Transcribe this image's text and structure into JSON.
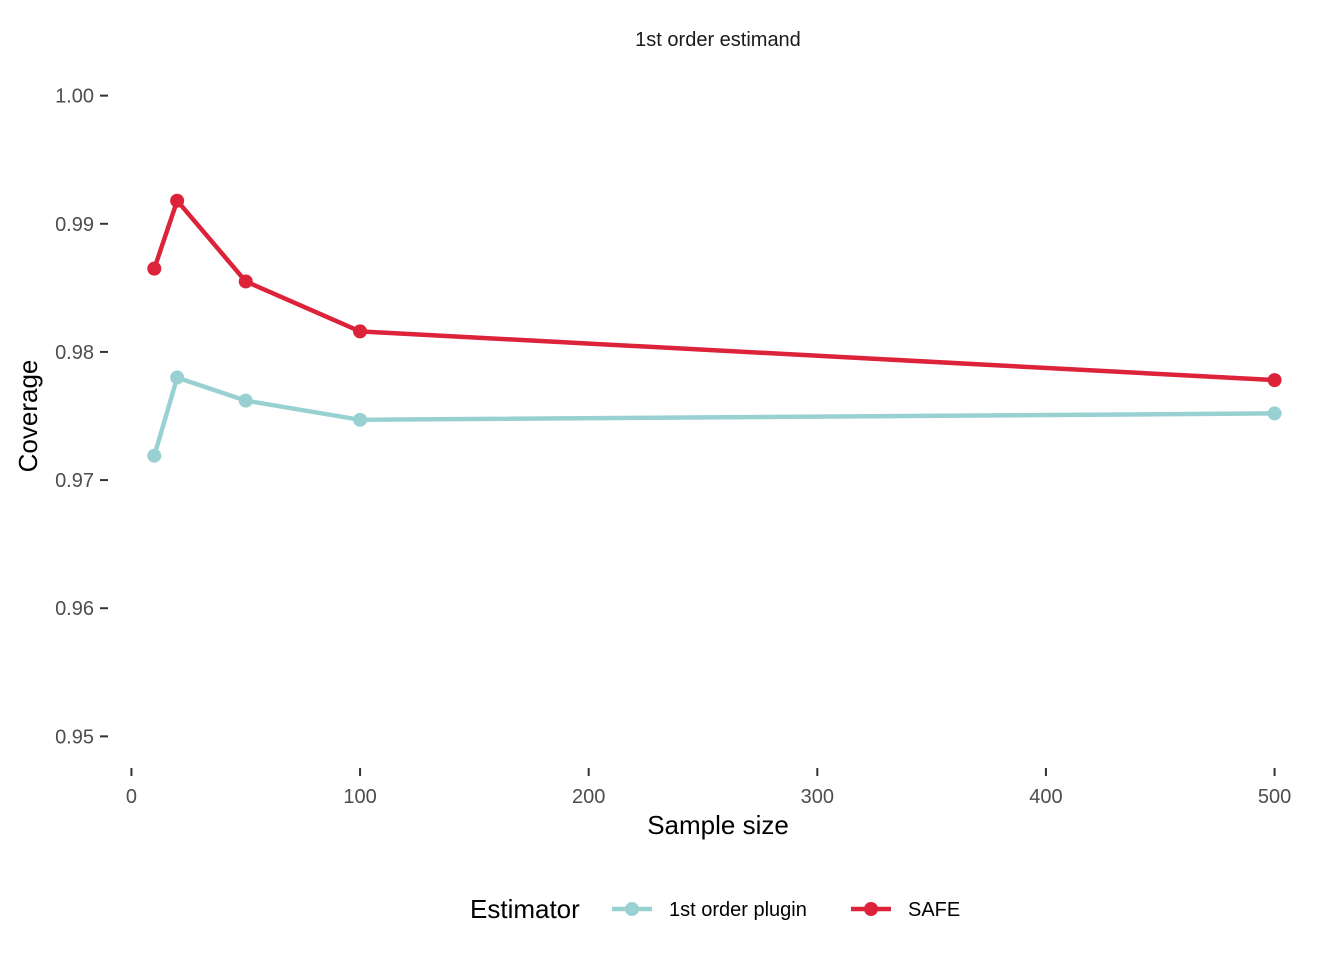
{
  "chart_data": {
    "type": "line",
    "title": "1st order estimand",
    "xlabel": "Sample size",
    "ylabel": "Coverage",
    "xlim": [
      -5,
      505
    ],
    "ylim": [
      0.948,
      1.002
    ],
    "x_ticks": [
      0,
      100,
      200,
      300,
      400,
      500
    ],
    "x_tick_labels": [
      "0",
      "100",
      "200",
      "300",
      "400",
      "500"
    ],
    "y_ticks": [
      0.95,
      0.96,
      0.97,
      0.98,
      0.99,
      1.0
    ],
    "y_tick_labels": [
      "0.95",
      "0.96",
      "0.97",
      "0.98",
      "0.99",
      "1.00"
    ],
    "grid": false,
    "legend": {
      "title": "Estimator",
      "position": "bottom"
    },
    "x": [
      10,
      20,
      50,
      100,
      500
    ],
    "series": [
      {
        "name": "1st order plugin",
        "color": "#99D1D3",
        "values": [
          0.9719,
          0.978,
          0.9762,
          0.9747,
          0.9752
        ]
      },
      {
        "name": "SAFE",
        "color": "#DC2339",
        "values": [
          0.9865,
          0.9918,
          0.9855,
          0.9816,
          0.9778
        ]
      }
    ]
  }
}
